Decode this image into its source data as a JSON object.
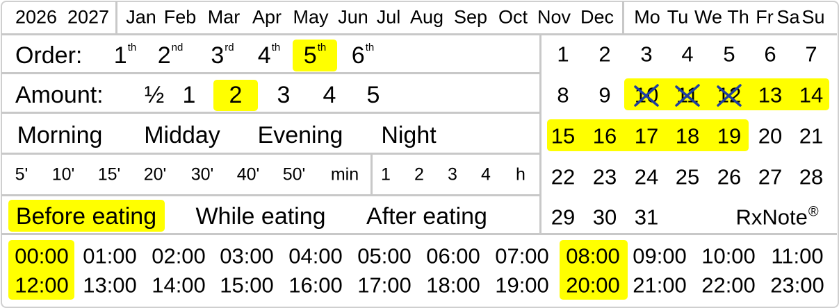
{
  "years": [
    "2026",
    "2027"
  ],
  "months": [
    "Jan",
    "Feb",
    "Mar",
    "Apr",
    "May",
    "Jun",
    "Jul",
    "Aug",
    "Sep",
    "Oct",
    "Nov",
    "Dec"
  ],
  "weekdays": [
    "Mo",
    "Tu",
    "We",
    "Th",
    "Fr",
    "Sa",
    "Su"
  ],
  "order": {
    "label": "Order:",
    "items": [
      {
        "n": "1",
        "s": "th"
      },
      {
        "n": "2",
        "s": "nd"
      },
      {
        "n": "3",
        "s": "rd"
      },
      {
        "n": "4",
        "s": "th"
      },
      {
        "n": "5",
        "s": "th"
      },
      {
        "n": "6",
        "s": "th"
      }
    ],
    "selected": "5th"
  },
  "amount": {
    "label": "Amount:",
    "items": [
      "½",
      "1",
      "2",
      "3",
      "4",
      "5"
    ],
    "selected": "2"
  },
  "time_of_day": [
    "Morning",
    "Midday",
    "Evening",
    "Night"
  ],
  "minutes": [
    "5'",
    "10'",
    "15'",
    "20'",
    "30'",
    "40'",
    "50'",
    "min"
  ],
  "hours_short": [
    "1",
    "2",
    "3",
    "4",
    "h"
  ],
  "eating": {
    "items": [
      "Before eating",
      "While eating",
      "After eating"
    ],
    "selected": "Before eating"
  },
  "calendar": {
    "days": [
      "1",
      "2",
      "3",
      "4",
      "5",
      "6",
      "7",
      "8",
      "9",
      "10",
      "11",
      "12",
      "13",
      "14",
      "15",
      "16",
      "17",
      "18",
      "19",
      "20",
      "21",
      "22",
      "23",
      "24",
      "25",
      "26",
      "27",
      "28",
      "29",
      "30",
      "31"
    ],
    "highlighted": [
      "10",
      "11",
      "12",
      "13",
      "14",
      "15",
      "16",
      "17",
      "18",
      "19"
    ],
    "crossed_out": [
      "10",
      "11",
      "12"
    ],
    "brand": "RxNote",
    "brand_mark": "®"
  },
  "hours": {
    "row1": [
      "00:00",
      "01:00",
      "02:00",
      "03:00",
      "04:00",
      "05:00",
      "06:00",
      "07:00",
      "08:00",
      "09:00",
      "10:00",
      "11:00"
    ],
    "row2": [
      "12:00",
      "13:00",
      "14:00",
      "15:00",
      "16:00",
      "17:00",
      "18:00",
      "19:00",
      "20:00",
      "21:00",
      "22:00",
      "23:00"
    ],
    "selected": [
      "00:00",
      "12:00",
      "08:00",
      "20:00"
    ]
  },
  "colors": {
    "highlight": "#ffff00",
    "cross": "#1f3f9f",
    "divider": "#c8c8c8"
  }
}
